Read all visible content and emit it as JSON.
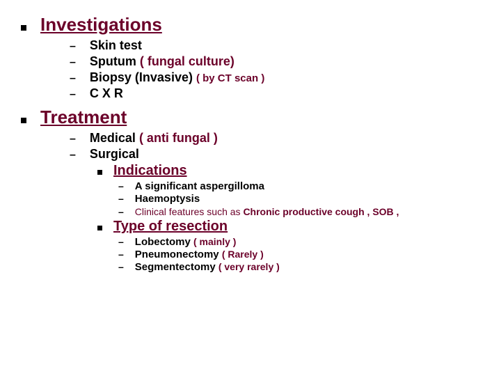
{
  "colors": {
    "accent": "#6b0029",
    "text": "#000000",
    "background": "#ffffff"
  },
  "typography": {
    "heading_fontsize": 26,
    "subtext_fontsize": 18,
    "nested_heading_fontsize": 20,
    "nested_text_fontsize": 15,
    "small_text_fontsize": 14,
    "font_family": "Arial"
  },
  "sec1": {
    "title": "Investigations",
    "i1": "Skin test",
    "i2a": "Sputum ",
    "i2b": "( fungal culture)",
    "i3a": "Biopsy (Invasive) ",
    "i3b": "( by CT scan )",
    "i4": "C X R"
  },
  "sec2": {
    "title": "Treatment",
    "i1a": "Medical ",
    "i1b": "( anti fungal )",
    "i2": "Surgical",
    "sub1": {
      "title": "Indications",
      "a": "A significant aspergilloma",
      "b": "Haemoptysis",
      "c1": "Clinical features such as ",
      "c2": "Chronic productive cough , SOB ,"
    },
    "sub2": {
      "title": "Type of resection",
      "a1": "Lobectomy ",
      "a2": "( mainly )",
      "b1": "Pneumonectomy ",
      "b2": "( Rarely )",
      "c1": "Segmentectomy ",
      "c2": "( very rarely )"
    }
  }
}
